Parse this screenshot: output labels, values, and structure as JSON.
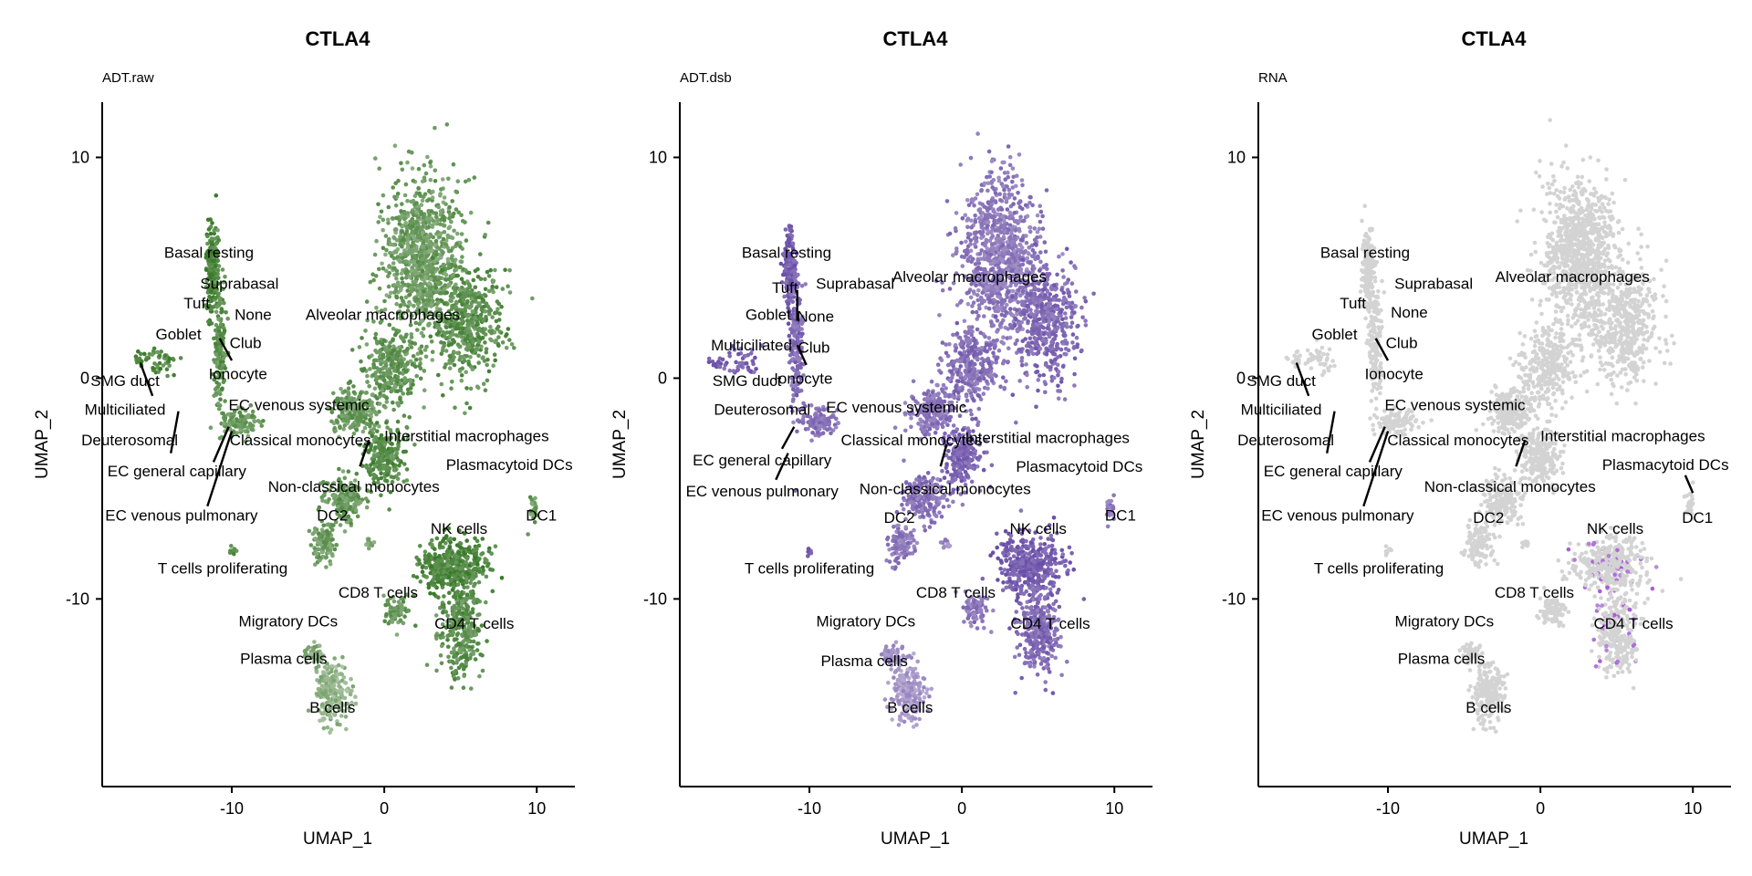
{
  "chart_data": [
    {
      "type": "scatter",
      "title": "CTLA4",
      "subtitle": "ADT.raw",
      "xlabel": "UMAP_1",
      "ylabel": "UMAP_2",
      "xlim": [
        -18.5,
        12.5
      ],
      "ylim": [
        -18.5,
        12.5
      ],
      "xticks": [
        -10,
        0,
        10
      ],
      "yticks": [
        -10,
        0,
        10
      ],
      "xtick_labels": [
        "-10",
        "0",
        "10"
      ],
      "ytick_labels": [
        "-10",
        "0",
        "10"
      ],
      "color_low": "#b2c8ac",
      "color_high": "#3a7a2a",
      "labels": [
        {
          "text": "Basal resting",
          "x": -11.5,
          "y": 5.7
        },
        {
          "text": "Suprabasal",
          "x": -9.5,
          "y": 4.3
        },
        {
          "text": "Tuft",
          "x": -12.3,
          "y": 3.4
        },
        {
          "text": "None",
          "x": -8.6,
          "y": 2.9
        },
        {
          "text": "Goblet",
          "x": -13.5,
          "y": 2.0
        },
        {
          "text": "Alveolar macrophages",
          "x": -0.1,
          "y": 2.9
        },
        {
          "text": "Club",
          "x": -9.1,
          "y": 1.6
        },
        {
          "text": "Ionocyte",
          "x": -9.6,
          "y": 0.2
        },
        {
          "text": "SMG duct",
          "x": -17.0,
          "y": -0.1
        },
        {
          "text": "Multiciliated",
          "x": -17.0,
          "y": -1.4
        },
        {
          "text": "EC venous systemic",
          "x": -5.6,
          "y": -1.2
        },
        {
          "text": "Deuterosomal",
          "x": -16.7,
          "y": -2.8
        },
        {
          "text": "Classical monocytes",
          "x": -5.5,
          "y": -2.8
        },
        {
          "text": "Interstitial macrophages",
          "x": 5.4,
          "y": -2.6
        },
        {
          "text": "Plasmacytoid DCs",
          "x": 8.2,
          "y": -3.9
        },
        {
          "text": "EC general capillary",
          "x": -13.6,
          "y": -4.2
        },
        {
          "text": "Non-classical monocytes",
          "x": -2.0,
          "y": -4.9
        },
        {
          "text": "EC venous pulmonary",
          "x": -13.3,
          "y": -6.2
        },
        {
          "text": "DC2",
          "x": -3.4,
          "y": -6.2
        },
        {
          "text": "NK cells",
          "x": 4.9,
          "y": -6.8
        },
        {
          "text": "DC1",
          "x": 10.3,
          "y": -6.2
        },
        {
          "text": "T cells proliferating",
          "x": -10.6,
          "y": -8.6
        },
        {
          "text": "CD8 T cells",
          "x": -0.4,
          "y": -9.7
        },
        {
          "text": "Migratory DCs",
          "x": -6.3,
          "y": -11.0
        },
        {
          "text": "CD4 T cells",
          "x": 5.9,
          "y": -11.1
        },
        {
          "text": "Plasma cells",
          "x": -6.6,
          "y": -12.7
        },
        {
          "text": "B cells",
          "x": -3.4,
          "y": -14.9
        }
      ]
    },
    {
      "type": "scatter",
      "title": "CTLA4",
      "subtitle": "ADT.dsb",
      "xlabel": "UMAP_1",
      "ylabel": "UMAP_2",
      "xlim": [
        -18.5,
        12.5
      ],
      "ylim": [
        -18.5,
        12.5
      ],
      "xticks": [
        -10,
        0,
        10
      ],
      "yticks": [
        -10,
        0,
        10
      ],
      "xtick_labels": [
        "-10",
        "0",
        "10"
      ],
      "ytick_labels": [
        "-10",
        "0",
        "10"
      ],
      "color_low": "#bcb0d4",
      "color_high": "#6a4fa8",
      "labels": [
        {
          "text": "Basal resting",
          "x": -11.5,
          "y": 5.7
        },
        {
          "text": "Tuft",
          "x": -11.6,
          "y": 4.1
        },
        {
          "text": "Suprabasal",
          "x": -7.0,
          "y": 4.3
        },
        {
          "text": "Alveolar macrophages",
          "x": 0.5,
          "y": 4.6
        },
        {
          "text": "Goblet",
          "x": -12.7,
          "y": 2.9
        },
        {
          "text": "None",
          "x": -9.6,
          "y": 2.8
        },
        {
          "text": "Multiciliated",
          "x": -13.8,
          "y": 1.5
        },
        {
          "text": "Club",
          "x": -9.7,
          "y": 1.4
        },
        {
          "text": "SMG duct",
          "x": -14.1,
          "y": -0.1
        },
        {
          "text": "Ionocyte",
          "x": -10.4,
          "y": 0.0
        },
        {
          "text": "Deuterosomal",
          "x": -13.1,
          "y": -1.4
        },
        {
          "text": "EC venous systemic",
          "x": -4.3,
          "y": -1.3
        },
        {
          "text": "Classical monocytes",
          "x": -3.3,
          "y": -2.8
        },
        {
          "text": "Interstitial macrophages",
          "x": 5.6,
          "y": -2.7
        },
        {
          "text": "Plasmacytoid DCs",
          "x": 7.7,
          "y": -4.0
        },
        {
          "text": "EC general capillary",
          "x": -13.1,
          "y": -3.7
        },
        {
          "text": "EC venous pulmonary",
          "x": -13.1,
          "y": -5.1
        },
        {
          "text": "Non-classical monocytes",
          "x": -1.1,
          "y": -5.0
        },
        {
          "text": "DC2",
          "x": -4.1,
          "y": -6.3
        },
        {
          "text": "NK cells",
          "x": 5.0,
          "y": -6.8
        },
        {
          "text": "DC1",
          "x": 10.4,
          "y": -6.2
        },
        {
          "text": "T cells proliferating",
          "x": -10.0,
          "y": -8.6
        },
        {
          "text": "CD8 T cells",
          "x": -0.4,
          "y": -9.7
        },
        {
          "text": "Migratory DCs",
          "x": -6.3,
          "y": -11.0
        },
        {
          "text": "CD4 T cells",
          "x": 5.8,
          "y": -11.1
        },
        {
          "text": "Plasma cells",
          "x": -6.4,
          "y": -12.8
        },
        {
          "text": "B cells",
          "x": -3.4,
          "y": -14.9
        }
      ]
    },
    {
      "type": "scatter",
      "title": "CTLA4",
      "subtitle": "RNA",
      "xlabel": "UMAP_1",
      "ylabel": "UMAP_2",
      "xlim": [
        -18.5,
        12.5
      ],
      "ylim": [
        -18.5,
        12.5
      ],
      "xticks": [
        -10,
        0,
        10
      ],
      "yticks": [
        -10,
        0,
        10
      ],
      "xtick_labels": [
        "-10",
        "0",
        "10"
      ],
      "ytick_labels": [
        "-10",
        "0",
        "10"
      ],
      "color_low": "#d3d3d3",
      "color_high": "#a855e0",
      "labels": [
        {
          "text": "Basal resting",
          "x": -11.5,
          "y": 5.7
        },
        {
          "text": "Suprabasal",
          "x": -7.0,
          "y": 4.3
        },
        {
          "text": "Alveolar macrophages",
          "x": 2.1,
          "y": 4.6
        },
        {
          "text": "Tuft",
          "x": -12.3,
          "y": 3.4
        },
        {
          "text": "None",
          "x": -8.6,
          "y": 3.0
        },
        {
          "text": "Goblet",
          "x": -13.5,
          "y": 2.0
        },
        {
          "text": "Club",
          "x": -9.1,
          "y": 1.6
        },
        {
          "text": "Ionocyte",
          "x": -9.6,
          "y": 0.2
        },
        {
          "text": "SMG duct",
          "x": -17.0,
          "y": -0.1
        },
        {
          "text": "Multiciliated",
          "x": -17.0,
          "y": -1.4
        },
        {
          "text": "EC venous systemic",
          "x": -5.6,
          "y": -1.2
        },
        {
          "text": "Deuterosomal",
          "x": -16.7,
          "y": -2.8
        },
        {
          "text": "Classical monocytes",
          "x": -5.4,
          "y": -2.8
        },
        {
          "text": "Interstitial macrophages",
          "x": 5.4,
          "y": -2.6
        },
        {
          "text": "Plasmacytoid DCs",
          "x": 8.2,
          "y": -3.9
        },
        {
          "text": "EC general capillary",
          "x": -13.6,
          "y": -4.2
        },
        {
          "text": "Non-classical monocytes",
          "x": -2.0,
          "y": -4.9
        },
        {
          "text": "EC venous pulmonary",
          "x": -13.3,
          "y": -6.2
        },
        {
          "text": "DC2",
          "x": -3.4,
          "y": -6.3
        },
        {
          "text": "NK cells",
          "x": 4.9,
          "y": -6.8
        },
        {
          "text": "DC1",
          "x": 10.3,
          "y": -6.3
        },
        {
          "text": "T cells proliferating",
          "x": -10.6,
          "y": -8.6
        },
        {
          "text": "CD8 T cells",
          "x": -0.4,
          "y": -9.7
        },
        {
          "text": "Migratory DCs",
          "x": -6.3,
          "y": -11.0
        },
        {
          "text": "CD4 T cells",
          "x": 6.1,
          "y": -11.1
        },
        {
          "text": "Plasma cells",
          "x": -6.5,
          "y": -12.7
        },
        {
          "text": "B cells",
          "x": -3.4,
          "y": -14.9
        }
      ]
    }
  ]
}
